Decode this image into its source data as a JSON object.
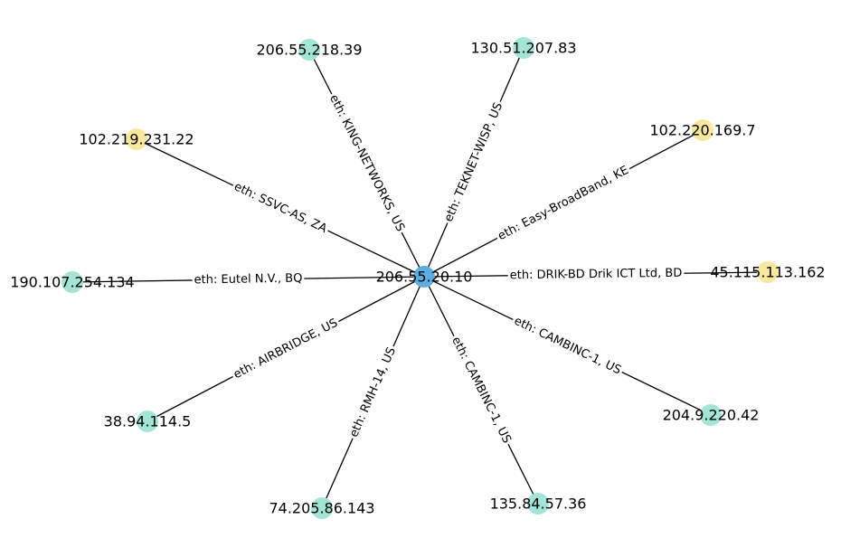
{
  "colors": {
    "center": "#5dade2",
    "teal": "#a3e4d7",
    "yellow": "#f9e79f",
    "edge": "#000000",
    "label_bg": "#ffffff"
  },
  "center": {
    "id": "c",
    "label": "206.55.20.10",
    "color": "center"
  },
  "nodes": [
    {
      "id": "n1",
      "label": "206.55.218.39",
      "color": "teal",
      "edge_label": "eth: KING-NETWORKS, US"
    },
    {
      "id": "n2",
      "label": "130.51.207.83",
      "color": "teal",
      "edge_label": "eth: TEKNET-WISP, US"
    },
    {
      "id": "n3",
      "label": "102.220.169.7",
      "color": "yellow",
      "edge_label": "eth: Easy-BroadBand, KE"
    },
    {
      "id": "n4",
      "label": "45.115.113.162",
      "color": "yellow",
      "edge_label": "eth: DRIK-BD Drik ICT Ltd, BD"
    },
    {
      "id": "n5",
      "label": "204.9.220.42",
      "color": "teal",
      "edge_label": "eth: CAMBINC-1, US"
    },
    {
      "id": "n6",
      "label": "135.84.57.36",
      "color": "teal",
      "edge_label": "eth: CAMBINC-1, US"
    },
    {
      "id": "n7",
      "label": "74.205.86.143",
      "color": "teal",
      "edge_label": "eth: RMH-14, US"
    },
    {
      "id": "n8",
      "label": "38.94.114.5",
      "color": "teal",
      "edge_label": "eth: AIRBRIDGE, US"
    },
    {
      "id": "n9",
      "label": "190.107.254.134",
      "color": "teal",
      "edge_label": "eth: Eutel N.V., BQ"
    },
    {
      "id": "n10",
      "label": "102.219.231.22",
      "color": "yellow",
      "edge_label": "eth: SSVC-AS, ZA"
    }
  ]
}
